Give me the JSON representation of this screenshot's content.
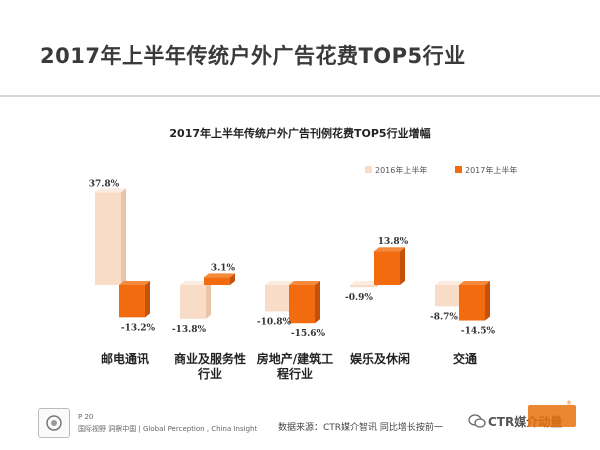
{
  "page": {
    "title": "2017年上半年传统户外广告花费TOP5行业"
  },
  "footer": {
    "page_number": "P 20",
    "brand": "国际视野 洞察中国 | Global Perception , China Insight",
    "source": "数据来源：CTR媒介智讯  同比增长按前一",
    "watermark": "CTR媒介动量"
  },
  "colors": {
    "series_2016": "#f8dcc8",
    "series_2016_side": "#e9c4a8",
    "series_2016_top": "#fcebdf",
    "series_2017": "#f26b0f",
    "series_2017_side": "#c4520a",
    "series_2017_top": "#f58a3d",
    "brand_orange": "#e8720c"
  },
  "chart_data": {
    "type": "bar",
    "title": "2017年上半年传统户外广告刊例花费TOP5行业增幅",
    "categories": [
      "邮电通讯",
      "商业及服务性行业",
      "房地产/建筑工程行业",
      "娱乐及休闲",
      "交通"
    ],
    "category_lines": [
      [
        "邮电通讯"
      ],
      [
        "商业及服务性",
        "行业"
      ],
      [
        "房地产/建筑工",
        "程行业"
      ],
      [
        "娱乐及休闲"
      ],
      [
        "交通"
      ]
    ],
    "series": [
      {
        "name": "2016年上半年",
        "values": [
          37.8,
          -13.8,
          -10.8,
          -0.9,
          -8.7
        ],
        "labels": [
          "37.8%",
          "-13.8%",
          "-10.8%",
          "-0.9%",
          "-8.7%"
        ]
      },
      {
        "name": "2017年上半年",
        "values": [
          -13.2,
          3.1,
          -15.6,
          13.8,
          -14.5
        ],
        "labels": [
          "-13.2%",
          "3.1%",
          "-15.6%",
          "13.8%",
          "-14.5%"
        ]
      }
    ],
    "ylim": [
      -20,
      40
    ],
    "grid": false,
    "legend_position": "top-right"
  }
}
